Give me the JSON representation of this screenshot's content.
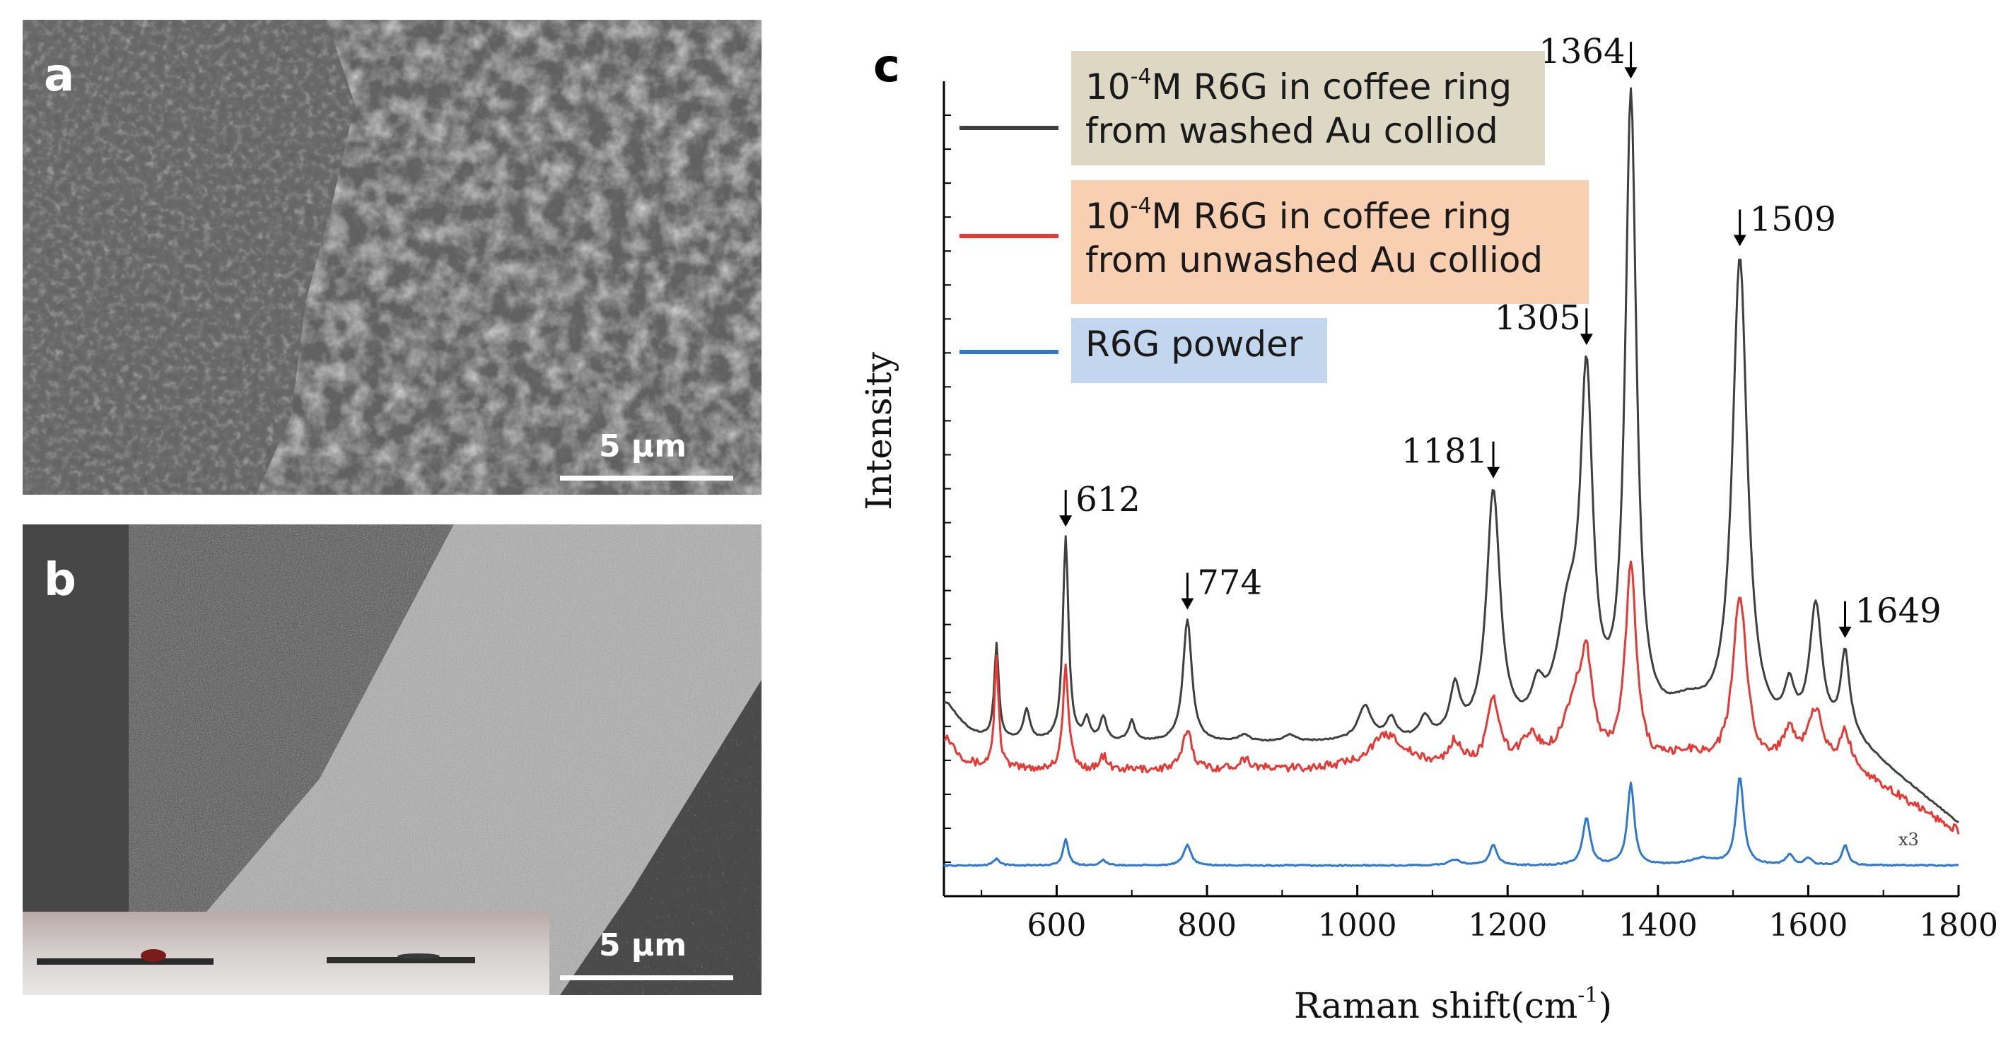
{
  "panels": {
    "a": {
      "letter": "a",
      "scale": "5 µm"
    },
    "b": {
      "letter": "b",
      "scale": "5 µm"
    },
    "c": {
      "letter": "c"
    }
  },
  "colors": {
    "washed": "#3f3f3f",
    "unwashed": "#e53935",
    "powder": "#2f78d0",
    "legend_washed_bg": "#ddd8c3",
    "legend_unwashed_bg": "#f8cfb1",
    "legend_powder_bg": "#c2d6ee"
  },
  "legend": {
    "washed": {
      "pre": "10",
      "sup": "-4",
      "line1_rest": "M R6G in coffee ring",
      "line2": "from washed  Au colliod"
    },
    "unwashed": {
      "pre": "10",
      "sup": "-4",
      "line1_rest": "M R6G in coffee ring",
      "line2": "from unwashed  Au colliod"
    },
    "powder": {
      "label": "R6G powder"
    }
  },
  "chart_data": {
    "type": "line",
    "xlabel_main": "Raman shift(cm",
    "xlabel_sup": "-1",
    "xlabel_close": ")",
    "ylabel": "Intensity",
    "xlim": [
      450,
      1800
    ],
    "ylim": [
      0,
      12
    ],
    "x_ticks": [
      600,
      800,
      1000,
      1200,
      1400,
      1600,
      1800
    ],
    "x_tick_labels": [
      "600",
      "800",
      "1000",
      "1200",
      "1400",
      "1600",
      "1800"
    ],
    "peak_annotations": [
      {
        "x": 612,
        "label": "612",
        "side": "right"
      },
      {
        "x": 774,
        "label": "774",
        "side": "right"
      },
      {
        "x": 1181,
        "label": "1181",
        "side": "left"
      },
      {
        "x": 1305,
        "label": "1305",
        "side": "left"
      },
      {
        "x": 1364,
        "label": "1364",
        "side": "left"
      },
      {
        "x": 1509,
        "label": "1509",
        "side": "right"
      },
      {
        "x": 1649,
        "label": "1649",
        "side": "right"
      }
    ],
    "scale_note": {
      "text": "x3",
      "x": 1720
    },
    "series": [
      {
        "name": "10-4M R6G in coffee ring from washed  Au colliod",
        "color_key": "washed",
        "baseline": 2.25,
        "peaks": [
          [
            450,
            0.6,
            25
          ],
          [
            520,
            1.4,
            3.5
          ],
          [
            560,
            0.45,
            5
          ],
          [
            612,
            3.0,
            4.5
          ],
          [
            640,
            0.3,
            5
          ],
          [
            662,
            0.35,
            5
          ],
          [
            700,
            0.3,
            5
          ],
          [
            774,
            1.8,
            7
          ],
          [
            850,
            0.1,
            8
          ],
          [
            910,
            0.1,
            8
          ],
          [
            1010,
            0.5,
            11
          ],
          [
            1045,
            0.3,
            8
          ],
          [
            1090,
            0.3,
            8
          ],
          [
            1130,
            0.7,
            8
          ],
          [
            1181,
            3.6,
            11
          ],
          [
            1240,
            0.5,
            10
          ],
          [
            1280,
            1.5,
            18
          ],
          [
            1305,
            4.9,
            10
          ],
          [
            1364,
            9.3,
            9
          ],
          [
            1440,
            0.4,
            35
          ],
          [
            1509,
            7.0,
            12
          ],
          [
            1575,
            0.6,
            8
          ],
          [
            1610,
            1.9,
            10
          ],
          [
            1649,
            1.2,
            7
          ]
        ],
        "tail_end": 1.05
      },
      {
        "name": "10-4M R6G in coffee ring from unwashed  Au colliod",
        "color_key": "unwashed",
        "baseline": 1.85,
        "peaks": [
          [
            450,
            0.5,
            20
          ],
          [
            520,
            1.6,
            3.5
          ],
          [
            612,
            1.5,
            4.5
          ],
          [
            662,
            0.2,
            5
          ],
          [
            774,
            0.6,
            7
          ],
          [
            850,
            0.15,
            10
          ],
          [
            1040,
            0.5,
            30
          ],
          [
            1130,
            0.35,
            10
          ],
          [
            1181,
            0.95,
            10
          ],
          [
            1230,
            0.4,
            15
          ],
          [
            1290,
            0.9,
            20
          ],
          [
            1305,
            1.2,
            9
          ],
          [
            1364,
            2.9,
            9
          ],
          [
            1440,
            0.2,
            30
          ],
          [
            1509,
            2.5,
            11
          ],
          [
            1575,
            0.5,
            12
          ],
          [
            1610,
            0.8,
            12
          ],
          [
            1649,
            0.5,
            8
          ]
        ],
        "tail_end": 0.95,
        "noise": 0.06
      },
      {
        "name": "R6G powder",
        "color_key": "powder",
        "baseline": 0.45,
        "peaks": [
          [
            520,
            0.1,
            5
          ],
          [
            612,
            0.4,
            4
          ],
          [
            662,
            0.08,
            5
          ],
          [
            774,
            0.3,
            6
          ],
          [
            1130,
            0.08,
            10
          ],
          [
            1181,
            0.3,
            6
          ],
          [
            1305,
            0.7,
            6
          ],
          [
            1364,
            1.2,
            5.5
          ],
          [
            1460,
            0.1,
            20
          ],
          [
            1509,
            1.3,
            6
          ],
          [
            1575,
            0.15,
            6
          ],
          [
            1600,
            0.1,
            6
          ],
          [
            1649,
            0.3,
            5
          ]
        ],
        "tail_end": 0.45
      }
    ]
  }
}
